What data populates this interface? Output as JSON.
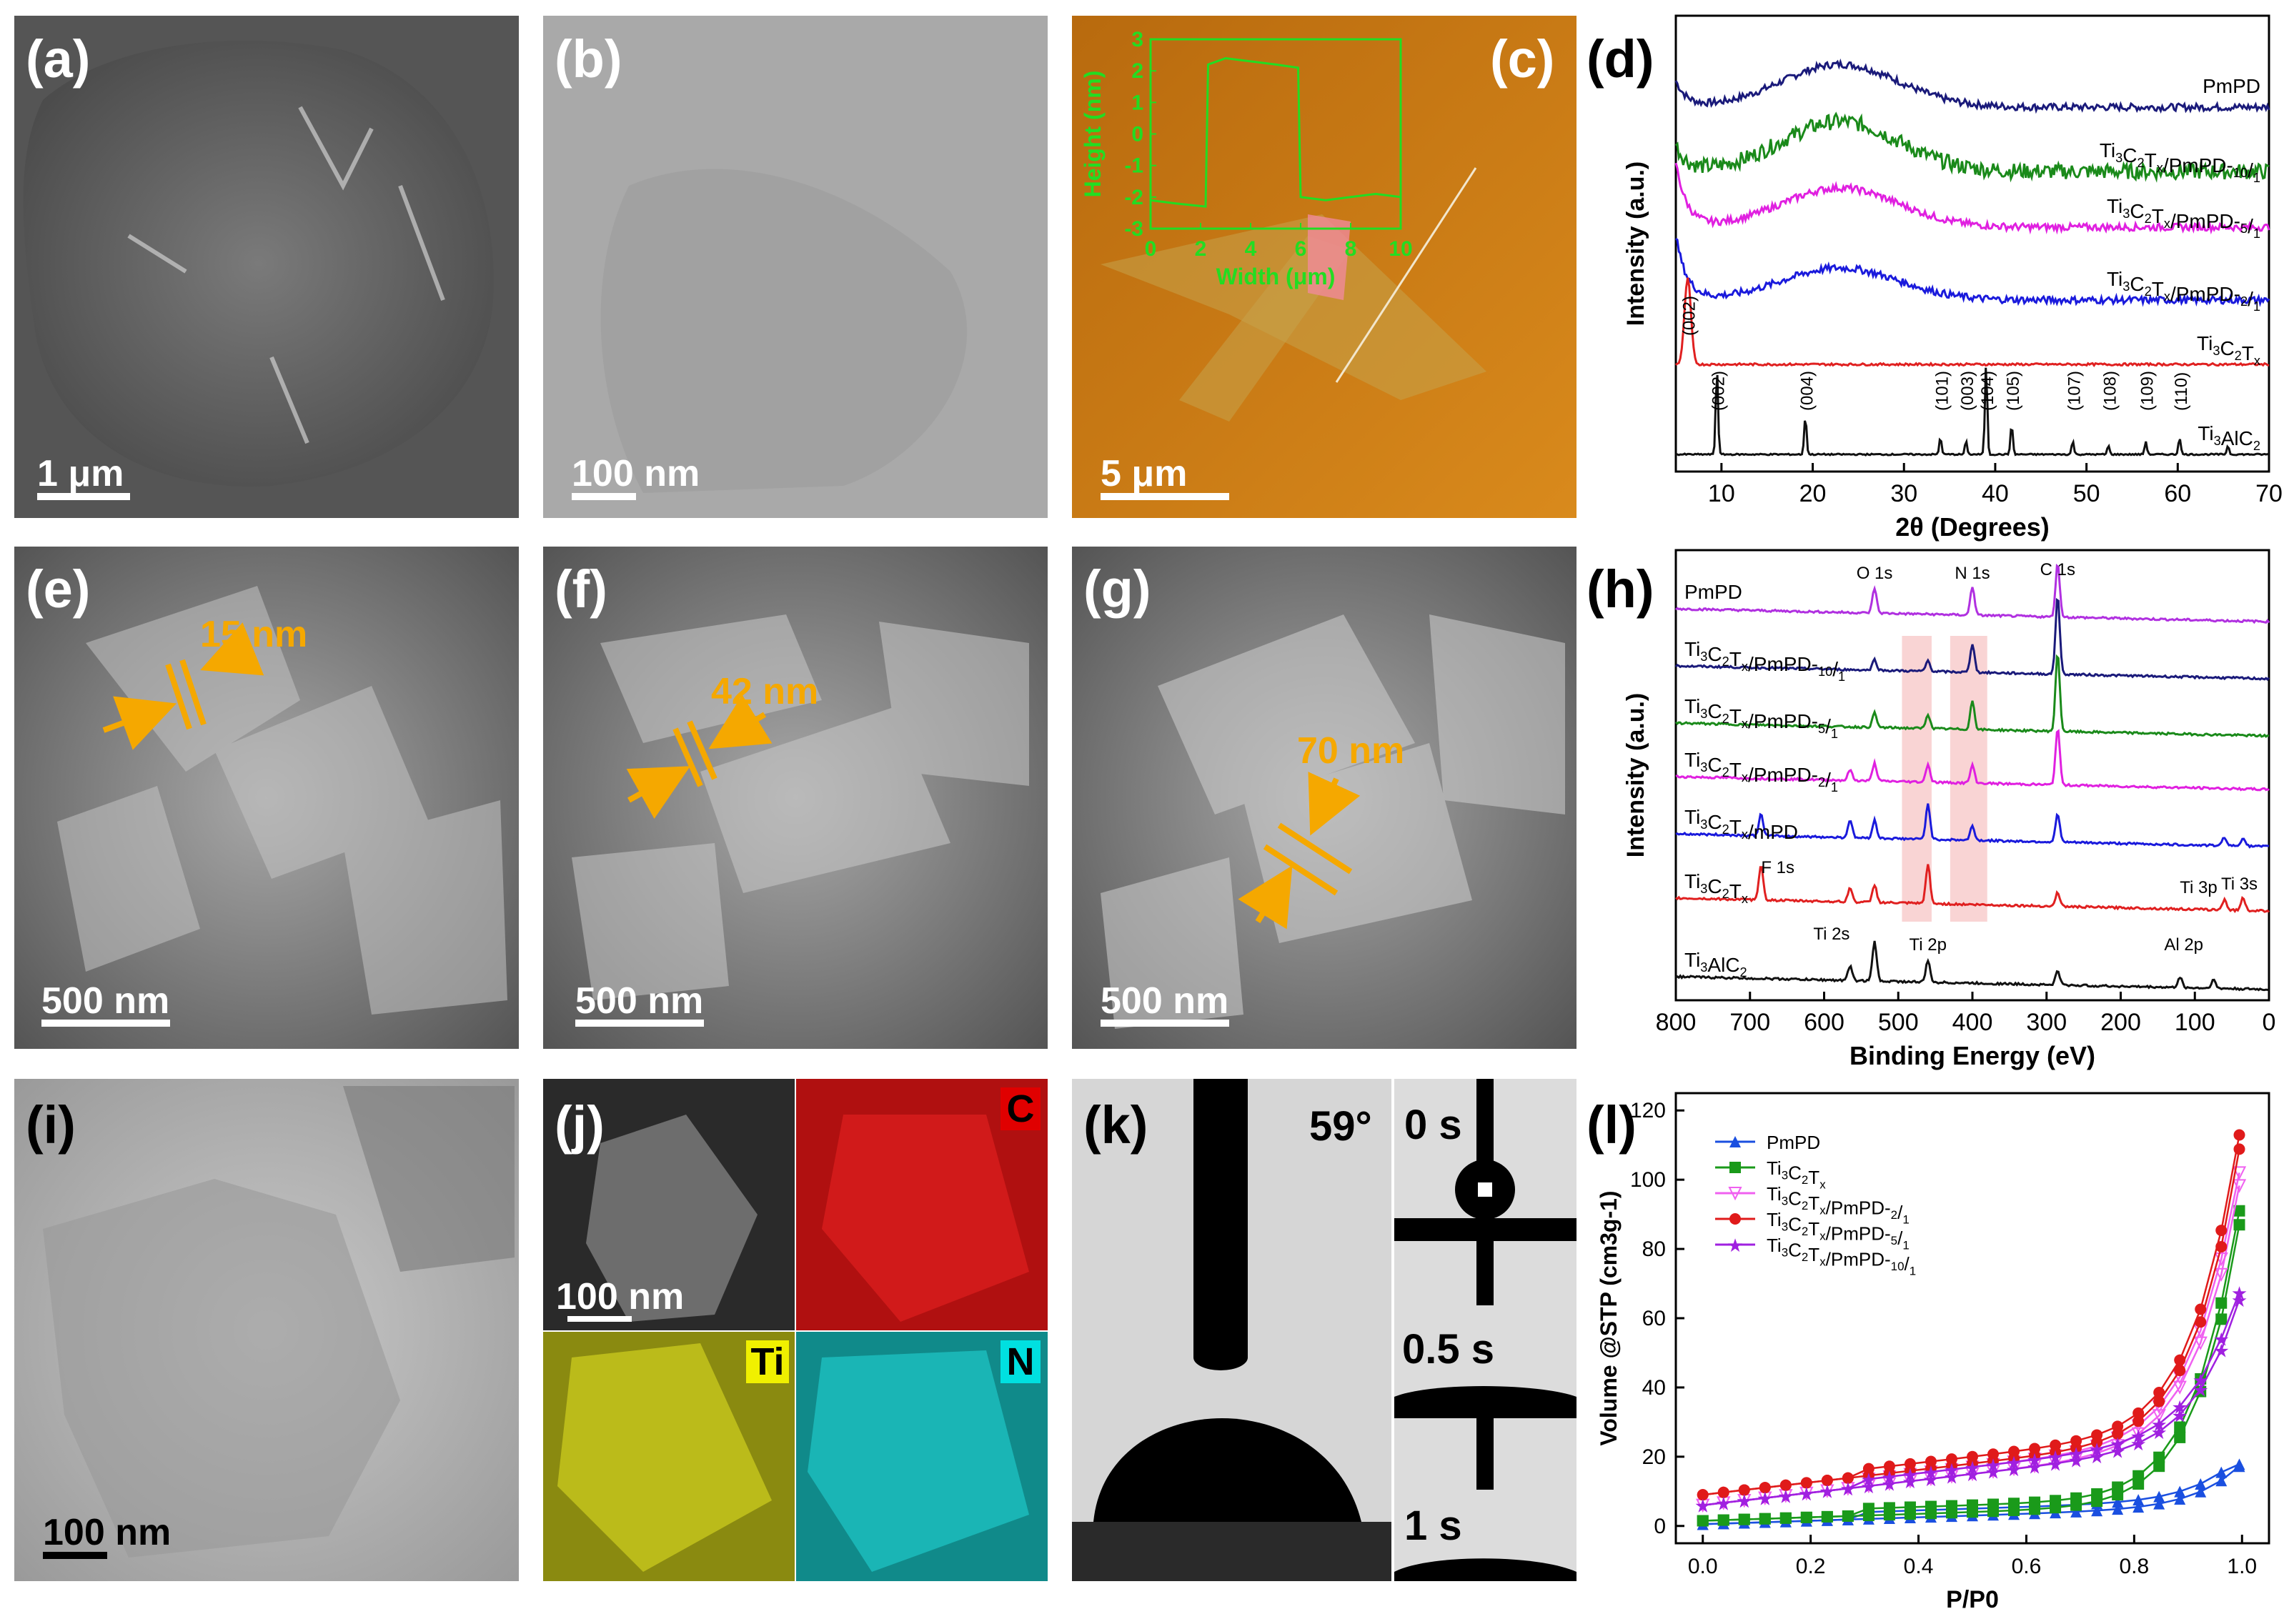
{
  "panels": {
    "a": {
      "label": "(a)",
      "scale_bar": "1 μm"
    },
    "b": {
      "label": "(b)",
      "scale_bar": "100 nm"
    },
    "c": {
      "label": "(c)",
      "scale_bar": "5 μm",
      "inset": {
        "xlabel": "Width (μm)",
        "ylabel": "Height (nm)",
        "xticks": [
          "0",
          "2",
          "4",
          "6",
          "8",
          "10"
        ],
        "yticks": [
          "3",
          "2",
          "1",
          "0",
          "-1",
          "-2",
          "-3"
        ],
        "profile_x": [
          0,
          1,
          2.2,
          2.3,
          3,
          4,
          5,
          5.9,
          6.0,
          7,
          8,
          9,
          10
        ],
        "profile_y": [
          -2.1,
          -2.2,
          -2.3,
          2.2,
          2.4,
          2.3,
          2.2,
          2.1,
          -2.0,
          -2.1,
          -2.0,
          -1.9,
          -2.0
        ]
      }
    },
    "d": {
      "label": "(d)"
    },
    "e": {
      "label": "(e)",
      "scale_bar": "500 nm",
      "thickness": "15 nm"
    },
    "f": {
      "label": "(f)",
      "scale_bar": "500 nm",
      "thickness": "42 nm"
    },
    "g": {
      "label": "(g)",
      "scale_bar": "500 nm",
      "thickness": "70 nm"
    },
    "h": {
      "label": "(h)"
    },
    "i": {
      "label": "(i)",
      "scale_bar": "100 nm"
    },
    "j": {
      "label": "(j)",
      "scale_bar": "100 nm",
      "maps": {
        "C": "C",
        "Ti": "Ti",
        "N": "N"
      }
    },
    "k": {
      "label": "(k)",
      "angle": "59°",
      "times": [
        "0 s",
        "0.5 s",
        "1 s"
      ]
    },
    "l": {
      "label": "(l)"
    }
  },
  "chart_data": [
    {
      "panel": "d",
      "type": "line",
      "xlabel": "2θ (Degrees)",
      "ylabel": "Intensity (a.u.)",
      "xlim": [
        5,
        70
      ],
      "xticks": [
        10,
        20,
        30,
        40,
        50,
        60,
        70
      ],
      "series": [
        {
          "name": "PmPD",
          "color": "#1a1a7a"
        },
        {
          "name": "Ti3C2Tx/PmPD-10/1",
          "color": "#1a8a1a"
        },
        {
          "name": "Ti3C2Tx/PmPD-5/1",
          "color": "#e020e0"
        },
        {
          "name": "Ti3C2Tx/PmPD-2/1",
          "color": "#1a1adc"
        },
        {
          "name": "Ti3C2Tx",
          "color": "#e02020"
        },
        {
          "name": "Ti3AlC2",
          "color": "#111111"
        }
      ],
      "peak_labels": [
        {
          "text": "(002)",
          "x": 6.3,
          "series": "Ti3C2Tx"
        },
        {
          "text": "(002)",
          "x": 9.5
        },
        {
          "text": "(004)",
          "x": 19.2
        },
        {
          "text": "(101)",
          "x": 34.0
        },
        {
          "text": "(003)",
          "x": 36.8
        },
        {
          "text": "(104)",
          "x": 39.0
        },
        {
          "text": "(105)",
          "x": 41.8
        },
        {
          "text": "(107)",
          "x": 48.5
        },
        {
          "text": "(108)",
          "x": 52.4
        },
        {
          "text": "(109)",
          "x": 56.5
        },
        {
          "text": "(110)",
          "x": 60.2
        }
      ],
      "ti3alc2_peaks": [
        [
          9.5,
          1.0
        ],
        [
          19.2,
          0.45
        ],
        [
          34.0,
          0.2
        ],
        [
          36.8,
          0.15
        ],
        [
          39.0,
          1.05
        ],
        [
          41.8,
          0.35
        ],
        [
          48.5,
          0.15
        ],
        [
          52.4,
          0.1
        ],
        [
          56.5,
          0.15
        ],
        [
          60.2,
          0.2
        ],
        [
          65.5,
          0.1
        ]
      ]
    },
    {
      "panel": "h",
      "type": "line",
      "xlabel": "Binding Energy (eV)",
      "ylabel": "Intensity (a.u.)",
      "xlim": [
        800,
        0
      ],
      "xticks": [
        800,
        700,
        600,
        500,
        400,
        300,
        200,
        100,
        0
      ],
      "series": [
        {
          "name": "PmPD",
          "color": "#b030e0"
        },
        {
          "name": "Ti3C2Tx/PmPD-10/1",
          "color": "#1a1a7a"
        },
        {
          "name": "Ti3C2Tx/PmPD-5/1",
          "color": "#1a8a1a"
        },
        {
          "name": "Ti3C2Tx/PmPD-2/1",
          "color": "#e020e0"
        },
        {
          "name": "Ti3C2Tx/mPD",
          "color": "#1a1adc"
        },
        {
          "name": "Ti3C2Tx",
          "color": "#e02020"
        },
        {
          "name": "Ti3AlC2",
          "color": "#111111"
        }
      ],
      "annotations": [
        "O 1s",
        "N 1s",
        "C 1s",
        "F 1s",
        "Ti 3p",
        "Ti 3s",
        "Ti 2s",
        "Ti 2p",
        "Al 2p"
      ],
      "highlight_bands": [
        [
          495,
          455
        ],
        [
          430,
          380
        ]
      ]
    },
    {
      "panel": "l",
      "type": "scatter",
      "xlabel": "P/P0",
      "ylabel": "Volume @STP (cm3g-1)",
      "xlim": [
        -0.05,
        1.05
      ],
      "ylim": [
        -5,
        125
      ],
      "xticks": [
        0.0,
        0.2,
        0.4,
        0.6,
        0.8,
        1.0
      ],
      "yticks": [
        0,
        20,
        40,
        60,
        80,
        100,
        120
      ],
      "series": [
        {
          "name": "PmPD",
          "color": "#1a4fe0",
          "marker": "triangle",
          "end": 18,
          "base": 0.5
        },
        {
          "name": "Ti3C2Tx",
          "color": "#1a9a1a",
          "marker": "square",
          "end": 92,
          "base": 1.5
        },
        {
          "name": "Ti3C2Tx/PmPD-2/1",
          "color": "#f060f0",
          "marker": "tri-down",
          "end": 103,
          "base": 6
        },
        {
          "name": "Ti3C2Tx/PmPD-5/1",
          "color": "#e01a1a",
          "marker": "circle",
          "end": 114,
          "base": 9
        },
        {
          "name": "Ti3C2Tx/PmPD-10/1",
          "color": "#a020e0",
          "marker": "star",
          "end": 68,
          "base": 6
        }
      ]
    }
  ]
}
